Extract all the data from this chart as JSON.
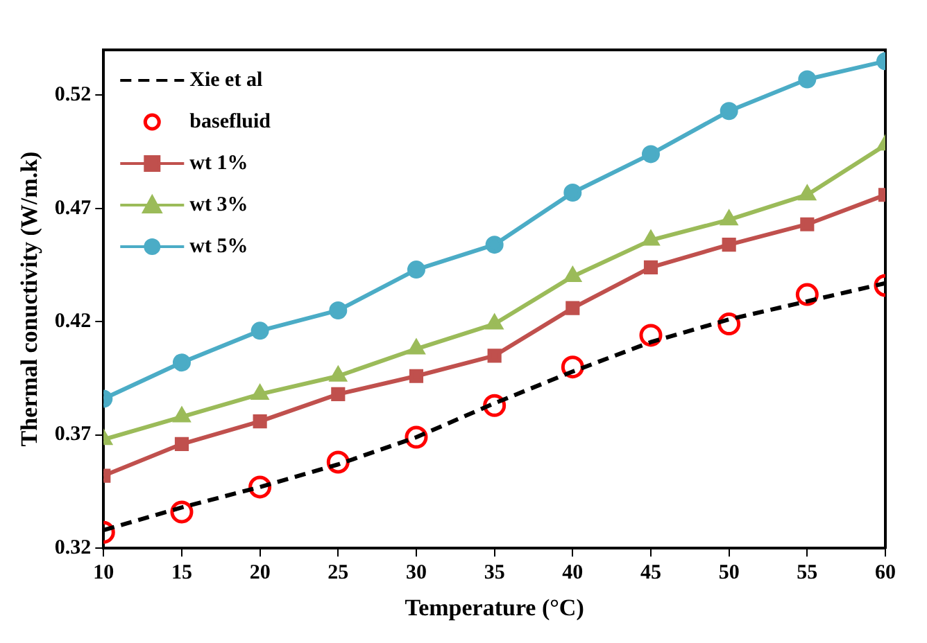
{
  "chart_data": {
    "type": "line",
    "xlabel": "Temperature (°C)",
    "ylabel": "Thermal conuctivity (W/m.k)",
    "x": [
      10,
      15,
      20,
      25,
      30,
      35,
      40,
      45,
      50,
      55,
      60
    ],
    "xlim": [
      10,
      60
    ],
    "xticks": [
      10,
      15,
      20,
      25,
      30,
      35,
      40,
      45,
      50,
      55,
      60
    ],
    "ylim": [
      0.32,
      0.54
    ],
    "yticks": [
      0.32,
      0.37,
      0.42,
      0.47,
      0.52
    ],
    "grid": false,
    "legend": "top left",
    "series": [
      {
        "name": "Xie et al",
        "type": "line",
        "color": "#000000",
        "line_style": "dashed",
        "marker": "none",
        "values": [
          0.328,
          0.338,
          0.347,
          0.357,
          0.369,
          0.384,
          0.398,
          0.411,
          0.421,
          0.429,
          0.437
        ]
      },
      {
        "name": "basefluid",
        "type": "scatter",
        "color": "#ff0000",
        "marker": "circle",
        "values": [
          0.327,
          0.336,
          0.347,
          0.358,
          0.369,
          0.383,
          0.4,
          0.414,
          0.419,
          0.432,
          0.436
        ]
      },
      {
        "name": "wt 1%",
        "type": "line",
        "color": "#c0504d",
        "marker": "square",
        "line_style": "solid",
        "values": [
          0.352,
          0.366,
          0.376,
          0.388,
          0.396,
          0.405,
          0.426,
          0.444,
          0.454,
          0.463,
          0.476
        ]
      },
      {
        "name": "wt 3%",
        "type": "line",
        "color": "#9bbb59",
        "marker": "triangle",
        "line_style": "solid",
        "values": [
          0.368,
          0.378,
          0.388,
          0.396,
          0.408,
          0.419,
          0.44,
          0.456,
          0.465,
          0.476,
          0.498
        ]
      },
      {
        "name": "wt 5%",
        "type": "line",
        "color": "#4bacc6",
        "marker": "circle",
        "line_style": "solid",
        "values": [
          0.386,
          0.402,
          0.416,
          0.425,
          0.443,
          0.454,
          0.477,
          0.494,
          0.513,
          0.527,
          0.535
        ]
      }
    ]
  }
}
